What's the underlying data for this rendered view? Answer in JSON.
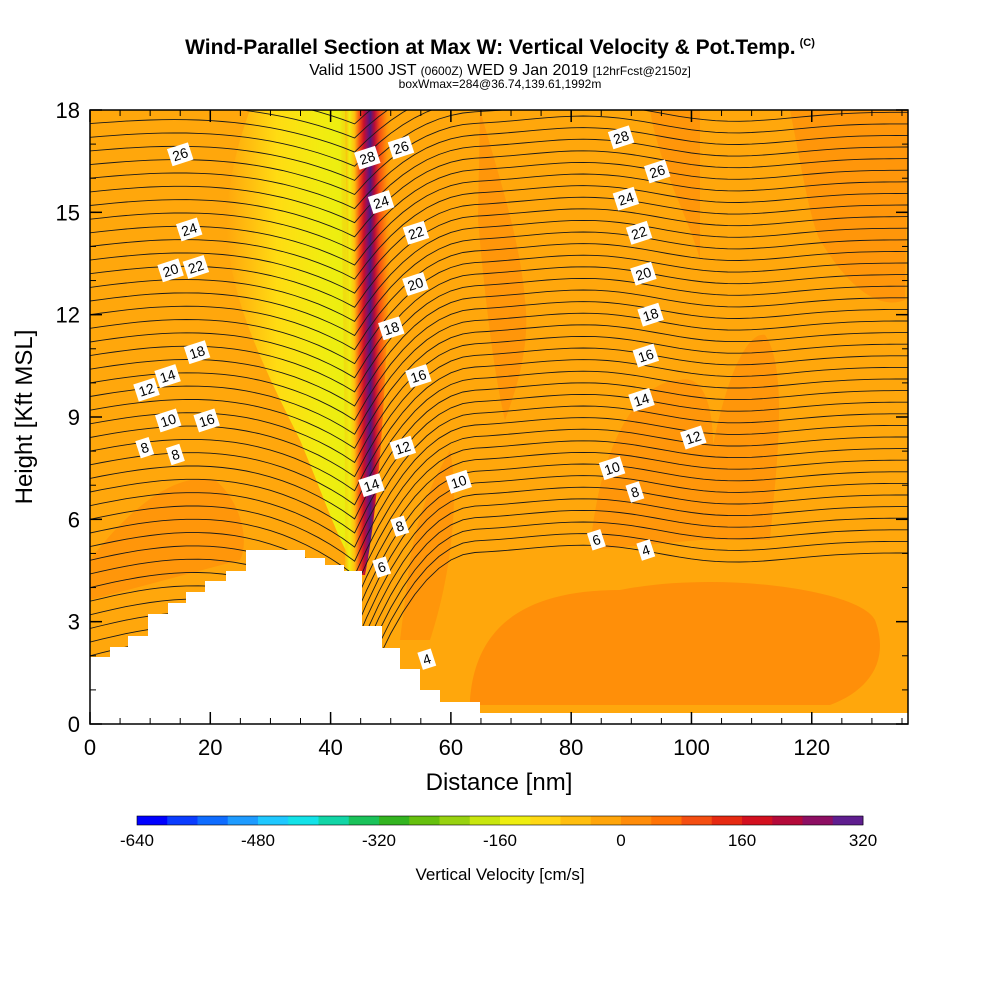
{
  "title": {
    "main": "Wind-Parallel Section at Max W: Vertical Velocity & Pot.Temp.",
    "copyright": "(C)",
    "valid_prefix": "Valid 1500 JST",
    "valid_utc": "(0600Z)",
    "valid_date": "WED 9 Jan 2019",
    "forecast": "[12hrFcst@2150z]",
    "box_info": "boxWmax=284@36.74,139.61,1992m"
  },
  "chart_data": {
    "type": "heatmap",
    "xlabel": "Distance [nm]",
    "ylabel": "Height [Kft MSL]",
    "xlim": [
      0,
      136
    ],
    "ylim": [
      0,
      18
    ],
    "x_ticks": [
      0,
      20,
      40,
      60,
      80,
      100,
      120
    ],
    "y_ticks": [
      0,
      3,
      6,
      9,
      12,
      15,
      18
    ],
    "colorbar": {
      "label": "Vertical Velocity [cm/s]",
      "range": [
        -640,
        320
      ],
      "ticks": [
        -640,
        -480,
        -320,
        -160,
        0,
        160,
        320
      ],
      "colors": [
        "#0000ff",
        "#0a3cff",
        "#0f6cff",
        "#1e9bff",
        "#1fc8ff",
        "#13e2e8",
        "#12d5a6",
        "#1ac25a",
        "#33b420",
        "#66c00e",
        "#98d210",
        "#c8e60e",
        "#eeee10",
        "#ffd814",
        "#ffbe0f",
        "#ffa50a",
        "#ff8c09",
        "#ff7305",
        "#f44e12",
        "#e62a12",
        "#d3101f",
        "#b40a3a",
        "#8d0f63",
        "#5f1e8f"
      ]
    },
    "background_color": "#ffa70c",
    "terrain_color": "#ffffff",
    "core": {
      "description_values": "updraft maximum",
      "x": 46,
      "w_max": 284
    },
    "updraft_regions": [
      {
        "name": "upper-left-weak",
        "level": 40
      },
      {
        "name": "right-weak",
        "level": 40
      },
      {
        "name": "low-right-weak",
        "level": 40
      }
    ],
    "theta_labels": [
      {
        "text": "26",
        "x": 15,
        "y": 16.7
      },
      {
        "text": "24",
        "x": 16.5,
        "y": 14.5
      },
      {
        "text": "20",
        "x": 13.4,
        "y": 13.3
      },
      {
        "text": "22",
        "x": 17.6,
        "y": 13.4
      },
      {
        "text": "18",
        "x": 17.8,
        "y": 10.9
      },
      {
        "text": "14",
        "x": 12.9,
        "y": 10.2
      },
      {
        "text": "12",
        "x": 9.4,
        "y": 9.8
      },
      {
        "text": "10",
        "x": 13,
        "y": 8.9
      },
      {
        "text": "16",
        "x": 19.4,
        "y": 8.9
      },
      {
        "text": "8",
        "x": 9.1,
        "y": 8.1
      },
      {
        "text": "8",
        "x": 14.2,
        "y": 7.9
      },
      {
        "text": "28",
        "x": 46.1,
        "y": 16.6
      },
      {
        "text": "26",
        "x": 51.7,
        "y": 16.9
      },
      {
        "text": "24",
        "x": 48.4,
        "y": 15.3
      },
      {
        "text": "22",
        "x": 54.2,
        "y": 14.4
      },
      {
        "text": "20",
        "x": 54.1,
        "y": 12.9
      },
      {
        "text": "18",
        "x": 50.1,
        "y": 11.6
      },
      {
        "text": "16",
        "x": 54.6,
        "y": 10.2
      },
      {
        "text": "12",
        "x": 52,
        "y": 8.1
      },
      {
        "text": "14",
        "x": 46.8,
        "y": 7.0
      },
      {
        "text": "10",
        "x": 61.3,
        "y": 7.1
      },
      {
        "text": "8",
        "x": 51.5,
        "y": 5.8
      },
      {
        "text": "6",
        "x": 48.5,
        "y": 4.6
      },
      {
        "text": "4",
        "x": 56,
        "y": 1.9
      },
      {
        "text": "28",
        "x": 88.3,
        "y": 17.2
      },
      {
        "text": "26",
        "x": 94.3,
        "y": 16.2
      },
      {
        "text": "24",
        "x": 89.1,
        "y": 15.4
      },
      {
        "text": "22",
        "x": 91.3,
        "y": 14.4
      },
      {
        "text": "20",
        "x": 92,
        "y": 13.2
      },
      {
        "text": "18",
        "x": 93.2,
        "y": 12.0
      },
      {
        "text": "16",
        "x": 92.4,
        "y": 10.8
      },
      {
        "text": "14",
        "x": 91.7,
        "y": 9.5
      },
      {
        "text": "12",
        "x": 100.3,
        "y": 8.4
      },
      {
        "text": "10",
        "x": 86.8,
        "y": 7.5
      },
      {
        "text": "8",
        "x": 90.6,
        "y": 6.8
      },
      {
        "text": "6",
        "x": 84.2,
        "y": 5.4
      },
      {
        "text": "4",
        "x": 92.4,
        "y": 5.1
      }
    ]
  }
}
